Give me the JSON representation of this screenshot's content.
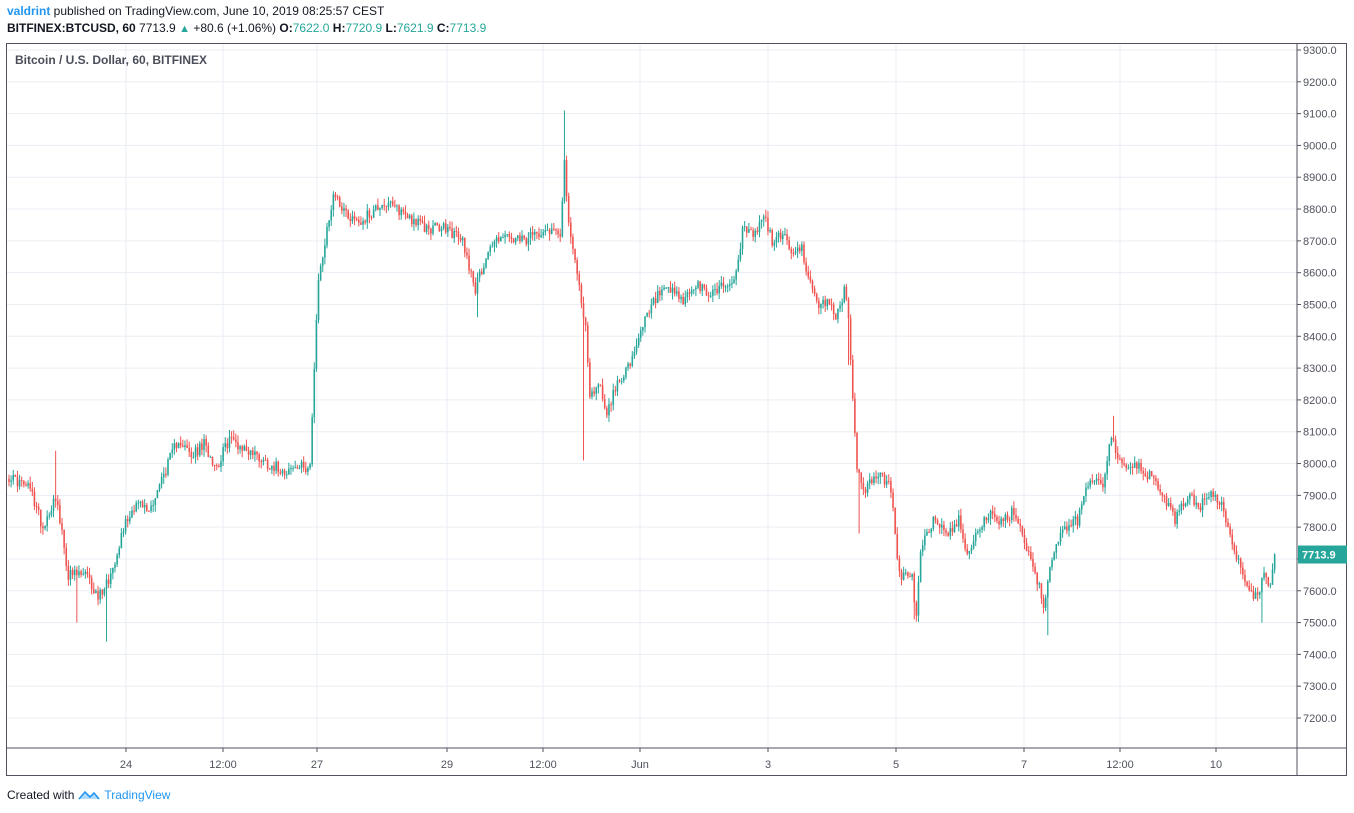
{
  "header": {
    "user": "valdrint",
    "published": " published on TradingView.com, June 10, 2019 08:25:57 CEST",
    "symbol": "BITFINEX:BTCUSD, 60",
    "last": "7713.9",
    "change_icon": "up-triangle-icon",
    "change": "+80.6 (+1.06%)",
    "o_label": "O:",
    "o_value": "7622.0",
    "h_label": "H:",
    "h_value": "7720.9",
    "l_label": "L:",
    "l_value": "7621.9",
    "c_label": "C:",
    "c_value": "7713.9"
  },
  "footer": {
    "created": "Created with",
    "brand": "TradingView",
    "logo_icon": "tradingview-logo-icon"
  },
  "colors": {
    "up": "#26a69a",
    "down": "#ef5350",
    "grid": "#e9eef3",
    "frame": "#50535e",
    "price_tag": "#26a69a"
  },
  "chart_data": {
    "type": "candlestick",
    "title": "Bitcoin / U.S. Dollar, 60, BITFINEX",
    "interval": "60",
    "yaxis": {
      "min": 7100,
      "max": 9300,
      "ticks": [
        "9300.0",
        "9200.0",
        "9100.0",
        "9000.0",
        "8900.0",
        "8800.0",
        "8700.0",
        "8600.0",
        "8500.0",
        "8400.0",
        "8300.0",
        "8200.0",
        "8100.0",
        "8000.0",
        "7900.0",
        "7800.0",
        "7700.0",
        "7600.0",
        "7500.0",
        "7400.0",
        "7300.0",
        "7200.0"
      ]
    },
    "xaxis": {
      "ticks": [
        "24",
        "12:00",
        "27",
        "29",
        "12:00",
        "Jun",
        "3",
        "5",
        "7",
        "12:00",
        "10"
      ]
    },
    "last_price": "7713.9",
    "grid": true,
    "keypoints": [
      {
        "i": 0,
        "price": 7960
      },
      {
        "i": 10,
        "price": 7920
      },
      {
        "i": 16,
        "price": 7800
      },
      {
        "i": 22,
        "price": 7900
      },
      {
        "i": 28,
        "price": 7650
      },
      {
        "i": 36,
        "price": 7650
      },
      {
        "i": 42,
        "price": 7580
      },
      {
        "i": 48,
        "price": 7650
      },
      {
        "i": 54,
        "price": 7800
      },
      {
        "i": 60,
        "price": 7880
      },
      {
        "i": 66,
        "price": 7850
      },
      {
        "i": 72,
        "price": 7950
      },
      {
        "i": 80,
        "price": 8080
      },
      {
        "i": 86,
        "price": 8020
      },
      {
        "i": 92,
        "price": 8060
      },
      {
        "i": 98,
        "price": 7990
      },
      {
        "i": 104,
        "price": 8080
      },
      {
        "i": 110,
        "price": 8050
      },
      {
        "i": 116,
        "price": 8030
      },
      {
        "i": 122,
        "price": 8000
      },
      {
        "i": 130,
        "price": 7980
      },
      {
        "i": 140,
        "price": 7990
      },
      {
        "i": 142,
        "price": 8000
      },
      {
        "i": 146,
        "price": 8580
      },
      {
        "i": 150,
        "price": 8730
      },
      {
        "i": 153,
        "price": 8850
      },
      {
        "i": 160,
        "price": 8780
      },
      {
        "i": 166,
        "price": 8760
      },
      {
        "i": 176,
        "price": 8820
      },
      {
        "i": 186,
        "price": 8790
      },
      {
        "i": 196,
        "price": 8740
      },
      {
        "i": 206,
        "price": 8740
      },
      {
        "i": 214,
        "price": 8700
      },
      {
        "i": 220,
        "price": 8550
      },
      {
        "i": 226,
        "price": 8670
      },
      {
        "i": 232,
        "price": 8720
      },
      {
        "i": 238,
        "price": 8700
      },
      {
        "i": 244,
        "price": 8700
      },
      {
        "i": 252,
        "price": 8740
      },
      {
        "i": 260,
        "price": 8730
      },
      {
        "i": 262,
        "price": 8950
      },
      {
        "i": 264,
        "price": 8740
      },
      {
        "i": 268,
        "price": 8600
      },
      {
        "i": 272,
        "price": 8430
      },
      {
        "i": 274,
        "price": 8200
      },
      {
        "i": 278,
        "price": 8260
      },
      {
        "i": 282,
        "price": 8160
      },
      {
        "i": 288,
        "price": 8270
      },
      {
        "i": 294,
        "price": 8320
      },
      {
        "i": 300,
        "price": 8450
      },
      {
        "i": 306,
        "price": 8530
      },
      {
        "i": 312,
        "price": 8540
      },
      {
        "i": 318,
        "price": 8510
      },
      {
        "i": 324,
        "price": 8560
      },
      {
        "i": 330,
        "price": 8530
      },
      {
        "i": 336,
        "price": 8560
      },
      {
        "i": 342,
        "price": 8570
      },
      {
        "i": 346,
        "price": 8730
      },
      {
        "i": 352,
        "price": 8720
      },
      {
        "i": 356,
        "price": 8780
      },
      {
        "i": 360,
        "price": 8700
      },
      {
        "i": 366,
        "price": 8720
      },
      {
        "i": 370,
        "price": 8650
      },
      {
        "i": 374,
        "price": 8680
      },
      {
        "i": 378,
        "price": 8560
      },
      {
        "i": 382,
        "price": 8480
      },
      {
        "i": 386,
        "price": 8520
      },
      {
        "i": 390,
        "price": 8460
      },
      {
        "i": 394,
        "price": 8540
      },
      {
        "i": 396,
        "price": 8470
      },
      {
        "i": 398,
        "price": 8200
      },
      {
        "i": 400,
        "price": 7980
      },
      {
        "i": 404,
        "price": 7920
      },
      {
        "i": 410,
        "price": 7970
      },
      {
        "i": 416,
        "price": 7920
      },
      {
        "i": 420,
        "price": 7650
      },
      {
        "i": 426,
        "price": 7640
      },
      {
        "i": 428,
        "price": 7510
      },
      {
        "i": 430,
        "price": 7720
      },
      {
        "i": 436,
        "price": 7830
      },
      {
        "i": 442,
        "price": 7780
      },
      {
        "i": 448,
        "price": 7820
      },
      {
        "i": 452,
        "price": 7720
      },
      {
        "i": 456,
        "price": 7780
      },
      {
        "i": 462,
        "price": 7840
      },
      {
        "i": 468,
        "price": 7810
      },
      {
        "i": 474,
        "price": 7850
      },
      {
        "i": 478,
        "price": 7780
      },
      {
        "i": 484,
        "price": 7660
      },
      {
        "i": 488,
        "price": 7560
      },
      {
        "i": 492,
        "price": 7700
      },
      {
        "i": 498,
        "price": 7800
      },
      {
        "i": 504,
        "price": 7820
      },
      {
        "i": 510,
        "price": 7960
      },
      {
        "i": 516,
        "price": 7940
      },
      {
        "i": 520,
        "price": 8080
      },
      {
        "i": 526,
        "price": 7980
      },
      {
        "i": 532,
        "price": 7990
      },
      {
        "i": 538,
        "price": 7960
      },
      {
        "i": 544,
        "price": 7910
      },
      {
        "i": 550,
        "price": 7820
      },
      {
        "i": 556,
        "price": 7900
      },
      {
        "i": 562,
        "price": 7870
      },
      {
        "i": 568,
        "price": 7900
      },
      {
        "i": 572,
        "price": 7880
      },
      {
        "i": 576,
        "price": 7760
      },
      {
        "i": 580,
        "price": 7700
      },
      {
        "i": 584,
        "price": 7620
      },
      {
        "i": 588,
        "price": 7580
      },
      {
        "i": 592,
        "price": 7640
      },
      {
        "i": 595,
        "price": 7630
      },
      {
        "i": 597,
        "price": 7713.9
      }
    ]
  }
}
